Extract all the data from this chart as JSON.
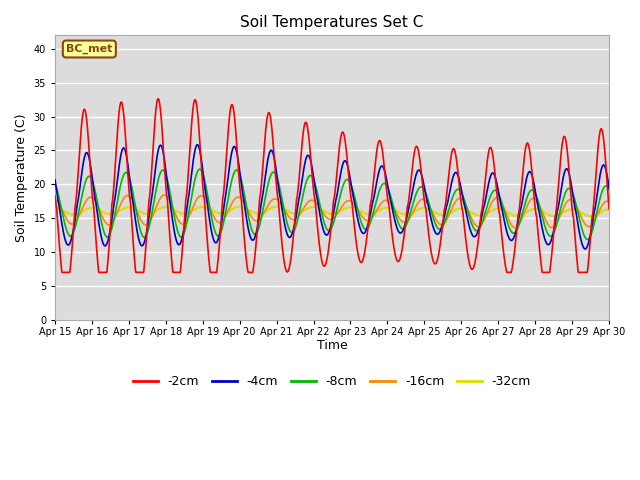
{
  "title": "Soil Temperatures Set C",
  "xlabel": "Time",
  "ylabel": "Soil Temperature (C)",
  "ylim": [
    0,
    42
  ],
  "yticks": [
    0,
    5,
    10,
    15,
    20,
    25,
    30,
    35,
    40
  ],
  "plot_bg_color": "#dcdcdc",
  "fig_bg_color": "#ffffff",
  "annotation_text": "BC_met",
  "annotation_bg": "#ffff99",
  "annotation_border": "#8b4513",
  "series": {
    "-2cm": {
      "color": "#ff0000",
      "lw": 1.2
    },
    "-4cm": {
      "color": "#0000cc",
      "lw": 1.2
    },
    "-8cm": {
      "color": "#00bb00",
      "lw": 1.2
    },
    "-16cm": {
      "color": "#ff8800",
      "lw": 1.2
    },
    "-32cm": {
      "color": "#dddd00",
      "lw": 1.5
    }
  },
  "x_tick_labels": [
    "Apr 15",
    "Apr 16",
    "Apr 17",
    "Apr 18",
    "Apr 19",
    "Apr 20",
    "Apr 21",
    "Apr 22",
    "Apr 23",
    "Apr 24",
    "Apr 25",
    "Apr 26",
    "Apr 27",
    "Apr 28",
    "Apr 29",
    "Apr 30"
  ],
  "n_days": 16
}
